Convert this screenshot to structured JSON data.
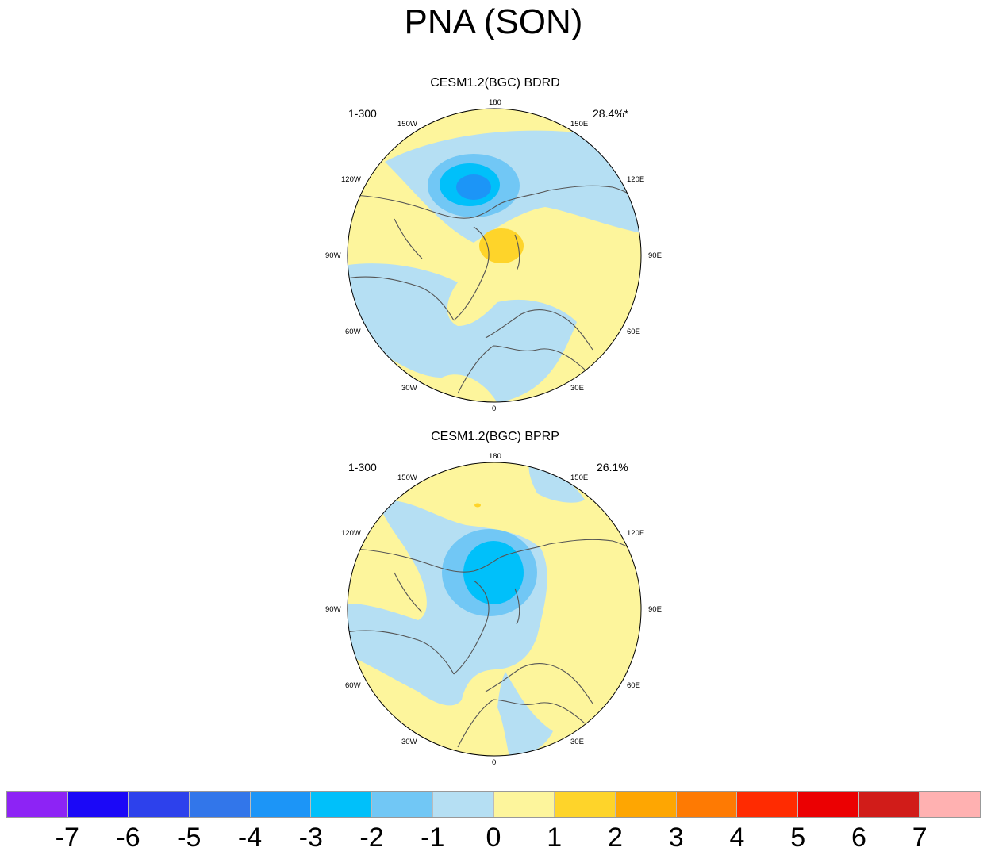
{
  "title": "PNA (SON)",
  "panels": [
    {
      "title": "CESM1.2(BGC) BDRD",
      "left_label": "1-300",
      "right_label": "28.4%*",
      "lon_labels": [
        "180",
        "150E",
        "120E",
        "90E",
        "60E",
        "30E",
        "0",
        "30W",
        "60W",
        "90W",
        "120W",
        "150W"
      ]
    },
    {
      "title": "CESM1.2(BGC) BPRP",
      "left_label": "1-300",
      "right_label": "26.1%",
      "lon_labels": [
        "180",
        "150E",
        "120E",
        "90E",
        "60E",
        "30E",
        "0",
        "30W",
        "60W",
        "90W",
        "120W",
        "150W"
      ]
    }
  ],
  "colorbar": {
    "colors": [
      "#8d23f5",
      "#1b08f7",
      "#2d41ec",
      "#3276ea",
      "#1c95f7",
      "#00c0fa",
      "#71c7f5",
      "#b5dff3",
      "#fdf59c",
      "#fed42a",
      "#fea602",
      "#fe7a03",
      "#ff2b01",
      "#eb0002",
      "#d11c19",
      "#ffb1b1"
    ],
    "tick_labels": [
      "-7",
      "-6",
      "-5",
      "-4",
      "-3",
      "-2",
      "-1",
      "0",
      "1",
      "2",
      "3",
      "4",
      "5",
      "6",
      "7"
    ]
  }
}
